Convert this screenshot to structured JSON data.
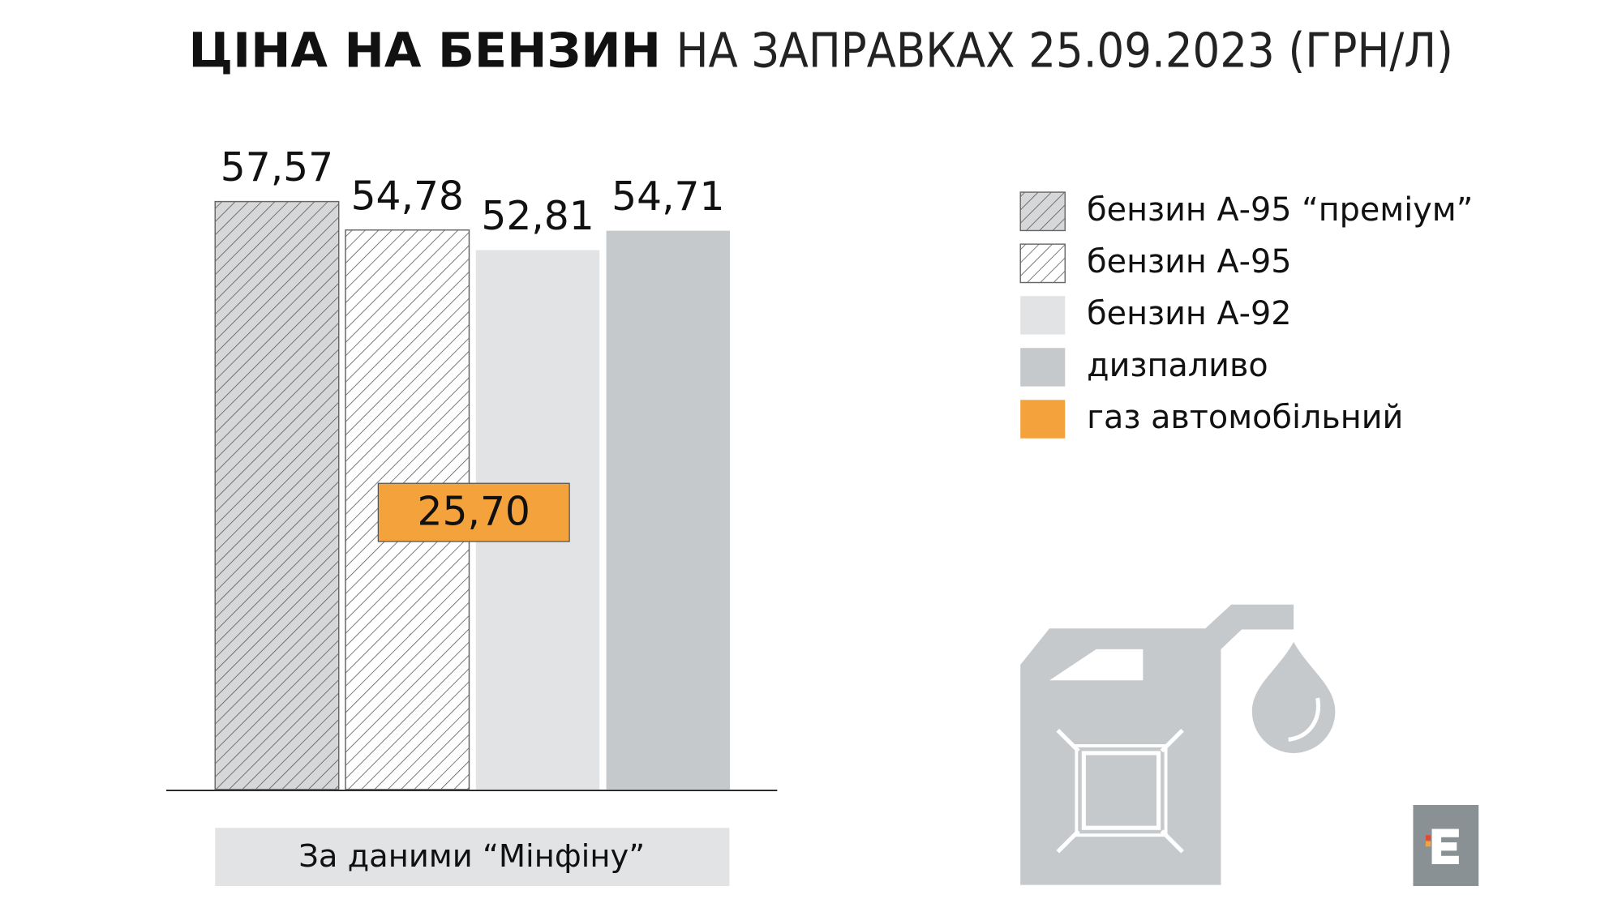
{
  "chart_data": {
    "type": "bar",
    "title": "ЦІНА НА БЕНЗИН",
    "subtitle": "НА ЗАПРАВКАХ 25.09.2023 (ГРН/Л)",
    "source": "За даними “Мінфіну”",
    "series": [
      {
        "name": "бензин А-95 “преміум”",
        "color": "#d6d7d8",
        "hatch": true,
        "values": [
          57.57
        ],
        "value_labels": [
          "57,57"
        ]
      },
      {
        "name": "бензин А-95",
        "color": "#ffffff",
        "hatch": true,
        "values": [
          54.78
        ],
        "value_labels": [
          "54,78"
        ]
      },
      {
        "name": "бензин А-92",
        "color": "#e2e3e5",
        "hatch": false,
        "values": [
          52.81
        ],
        "value_labels": [
          "52,81"
        ]
      },
      {
        "name": "дизпаливо",
        "color": "#c6c9cc",
        "hatch": false,
        "values": [
          54.71
        ],
        "value_labels": [
          "54,71"
        ]
      },
      {
        "name": "газ автомобільний",
        "color": "#f4a23c",
        "hatch": false,
        "values": [
          25.7
        ],
        "value_labels": [
          "25,70"
        ]
      }
    ]
  }
}
